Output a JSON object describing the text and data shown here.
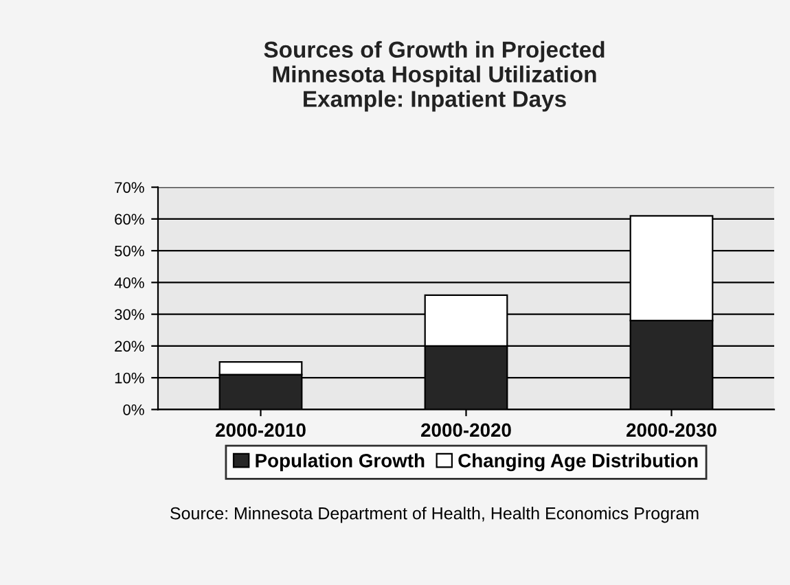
{
  "chart_data": {
    "type": "bar",
    "stacked": true,
    "title": "Sources of Growth in Projected\nMinnesota Hospital Utilization\nExample: Inpatient Days",
    "categories": [
      "2000-2010",
      "2000-2020",
      "2000-2030"
    ],
    "series": [
      {
        "name": "Population Growth",
        "color": "#262626",
        "values": [
          11,
          20,
          28
        ]
      },
      {
        "name": "Changing Age Distribution",
        "color": "#ffffff",
        "values": [
          4,
          16,
          33
        ]
      }
    ],
    "ylim": [
      0,
      70
    ],
    "yticks": [
      {
        "value": 0,
        "label": "0%"
      },
      {
        "value": 10,
        "label": "10%"
      },
      {
        "value": 20,
        "label": "20%"
      },
      {
        "value": 30,
        "label": "30%"
      },
      {
        "value": 40,
        "label": "40%"
      },
      {
        "value": 50,
        "label": "50%"
      },
      {
        "value": 60,
        "label": "60%"
      },
      {
        "value": 70,
        "label": "70%"
      }
    ],
    "grid": "y",
    "legend": "bottom",
    "annotations": [
      "Source: Minnesota Department of Health, Health Economics Program"
    ]
  }
}
